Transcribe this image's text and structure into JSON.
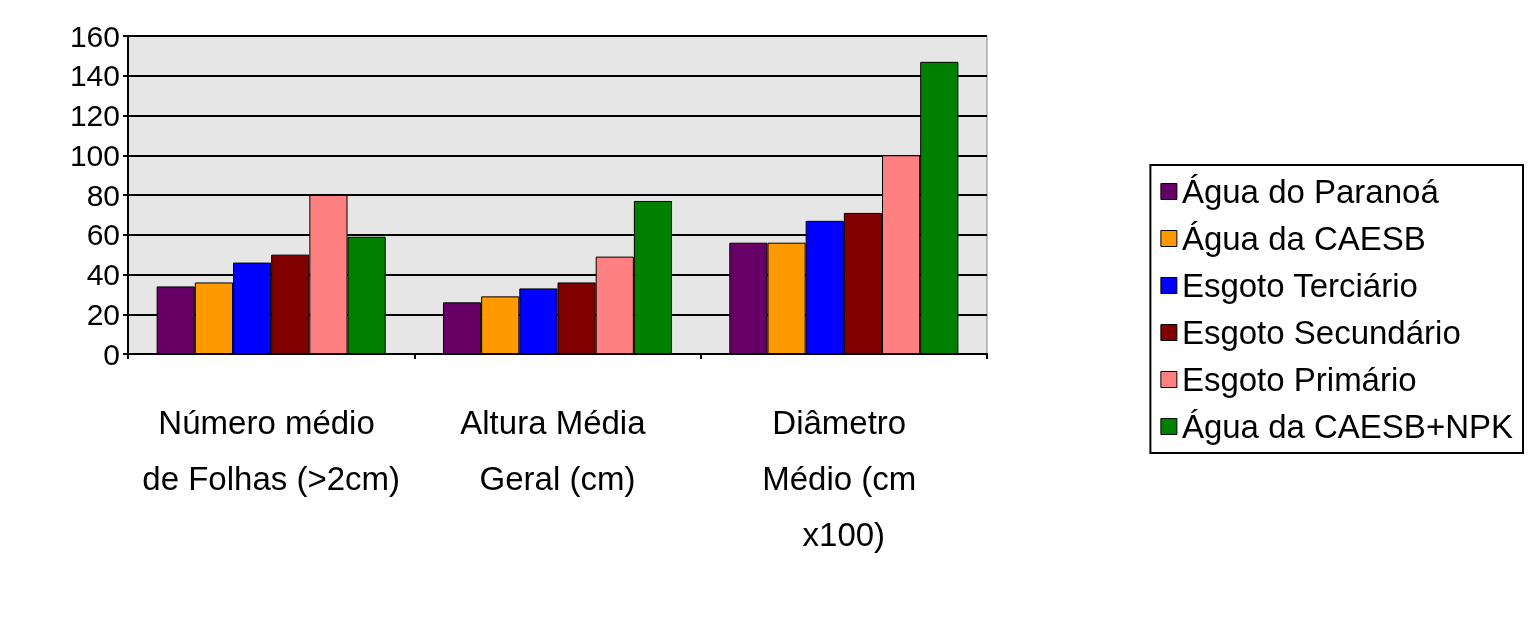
{
  "chart_data": {
    "type": "bar",
    "categories": [
      "Número médio de Folhas (>2cm)",
      "Altura Média Geral (cm)",
      "Diâmetro Médio (cm x100)"
    ],
    "series": [
      {
        "name": "Água do Paranoá",
        "color": "#660066",
        "values": [
          34,
          26,
          56
        ]
      },
      {
        "name": "Água da CAESB",
        "color": "#ff9900",
        "values": [
          36,
          29,
          56
        ]
      },
      {
        "name": "Esgoto Terciário",
        "color": "#0000ff",
        "values": [
          46,
          33,
          67
        ]
      },
      {
        "name": "Esgoto Secundário",
        "color": "#800000",
        "values": [
          50,
          36,
          71
        ]
      },
      {
        "name": "Esgoto Primário",
        "color": "#ff8080",
        "values": [
          80,
          49,
          100
        ]
      },
      {
        "name": "Água da CAESB+NPK",
        "color": "#008000",
        "values": [
          59,
          77,
          147
        ]
      }
    ],
    "ylim": [
      0,
      160
    ],
    "yticks": [
      0,
      20,
      40,
      60,
      80,
      100,
      120,
      140,
      160
    ],
    "grid": "y",
    "legend": "right"
  }
}
